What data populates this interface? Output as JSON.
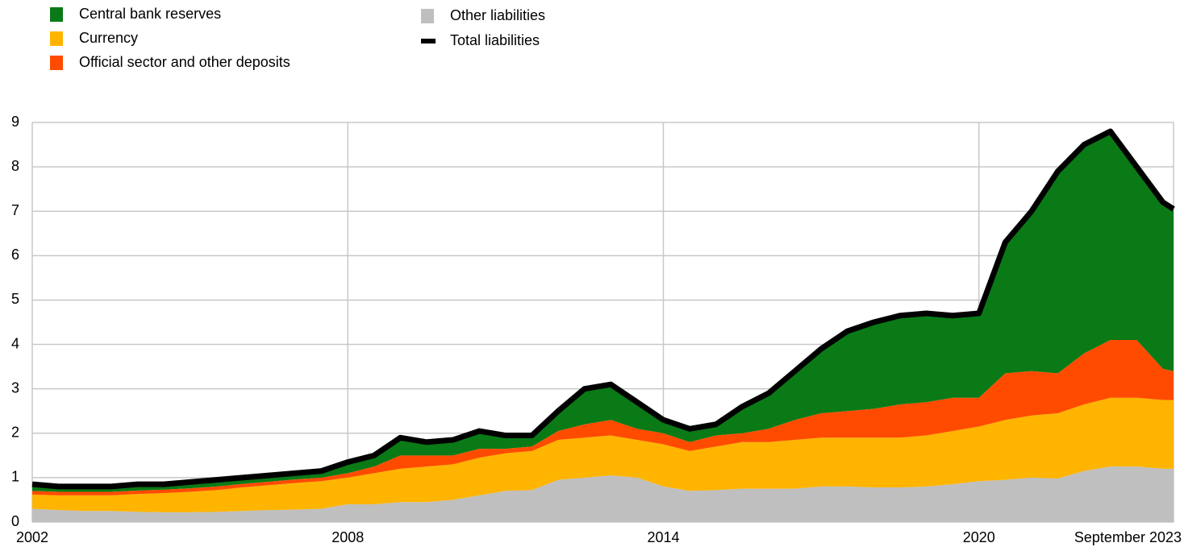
{
  "chart_data": {
    "type": "stacked_area",
    "x": [
      2002,
      2002.5,
      2003,
      2003.5,
      2004,
      2004.5,
      2005,
      2005.5,
      2006,
      2006.5,
      2007,
      2007.5,
      2008,
      2008.5,
      2009,
      2009.5,
      2010,
      2010.5,
      2011,
      2011.5,
      2012,
      2012.5,
      2013,
      2013.5,
      2014,
      2014.5,
      2015,
      2015.5,
      2016,
      2016.5,
      2017,
      2017.5,
      2018,
      2018.5,
      2019,
      2019.5,
      2020,
      2020.5,
      2021,
      2021.5,
      2022,
      2022.5,
      2023,
      2023.5,
      2023.7
    ],
    "series": [
      {
        "name": "Other liabilities",
        "color": "#bfbfbf",
        "values": [
          0.3,
          0.27,
          0.25,
          0.25,
          0.23,
          0.22,
          0.22,
          0.23,
          0.25,
          0.27,
          0.28,
          0.3,
          0.4,
          0.4,
          0.45,
          0.45,
          0.5,
          0.6,
          0.7,
          0.72,
          0.95,
          1.0,
          1.05,
          1.0,
          0.8,
          0.7,
          0.72,
          0.75,
          0.75,
          0.75,
          0.8,
          0.8,
          0.78,
          0.78,
          0.8,
          0.85,
          0.92,
          0.95,
          1.0,
          0.98,
          1.15,
          1.25,
          1.25,
          1.2,
          1.2
        ]
      },
      {
        "name": "Currency",
        "color": "#ffb400",
        "values": [
          0.32,
          0.33,
          0.35,
          0.35,
          0.4,
          0.43,
          0.46,
          0.49,
          0.53,
          0.56,
          0.6,
          0.62,
          0.6,
          0.7,
          0.75,
          0.8,
          0.8,
          0.85,
          0.85,
          0.88,
          0.9,
          0.9,
          0.9,
          0.85,
          0.95,
          0.9,
          0.98,
          1.05,
          1.05,
          1.1,
          1.1,
          1.1,
          1.12,
          1.12,
          1.15,
          1.2,
          1.23,
          1.35,
          1.4,
          1.47,
          1.5,
          1.55,
          1.55,
          1.55,
          1.55
        ]
      },
      {
        "name": "Official sector and other deposits",
        "color": "#ff4b00",
        "values": [
          0.08,
          0.08,
          0.08,
          0.08,
          0.08,
          0.08,
          0.08,
          0.08,
          0.08,
          0.08,
          0.08,
          0.08,
          0.1,
          0.15,
          0.3,
          0.25,
          0.2,
          0.2,
          0.1,
          0.1,
          0.2,
          0.3,
          0.35,
          0.25,
          0.25,
          0.2,
          0.25,
          0.2,
          0.3,
          0.45,
          0.55,
          0.6,
          0.65,
          0.75,
          0.75,
          0.75,
          0.65,
          1.05,
          1.0,
          0.9,
          1.15,
          1.3,
          1.3,
          0.7,
          0.65
        ]
      },
      {
        "name": "Central bank reserves",
        "color": "#0a7a16",
        "values": [
          0.15,
          0.12,
          0.12,
          0.12,
          0.14,
          0.12,
          0.14,
          0.15,
          0.14,
          0.14,
          0.14,
          0.15,
          0.25,
          0.25,
          0.4,
          0.3,
          0.35,
          0.4,
          0.3,
          0.25,
          0.45,
          0.8,
          0.8,
          0.6,
          0.3,
          0.3,
          0.25,
          0.6,
          0.8,
          1.1,
          1.45,
          1.8,
          1.95,
          2.0,
          2.0,
          1.85,
          1.9,
          2.95,
          3.6,
          4.55,
          4.7,
          4.7,
          3.9,
          3.75,
          3.65
        ]
      },
      {
        "name": "Total liabilities",
        "color": "#000000",
        "type": "line",
        "values": [
          0.85,
          0.8,
          0.8,
          0.8,
          0.85,
          0.85,
          0.9,
          0.95,
          1.0,
          1.05,
          1.1,
          1.15,
          1.35,
          1.5,
          1.9,
          1.8,
          1.85,
          2.05,
          1.95,
          1.95,
          2.5,
          3.0,
          3.1,
          2.7,
          2.3,
          2.1,
          2.2,
          2.6,
          2.9,
          3.4,
          3.9,
          4.3,
          4.5,
          4.65,
          4.7,
          4.65,
          4.7,
          6.3,
          7.0,
          7.9,
          8.5,
          8.8,
          8.0,
          7.2,
          7.05
        ]
      }
    ],
    "xlim": [
      2002,
      2023.7
    ],
    "xticks": [
      2002,
      2008,
      2014,
      2020,
      {
        "value": 2023.7,
        "label": "September 2023"
      }
    ],
    "ylim": [
      0,
      9
    ],
    "yticks": [
      0,
      1,
      2,
      3,
      4,
      5,
      6,
      7,
      8,
      9
    ],
    "grid": true
  }
}
